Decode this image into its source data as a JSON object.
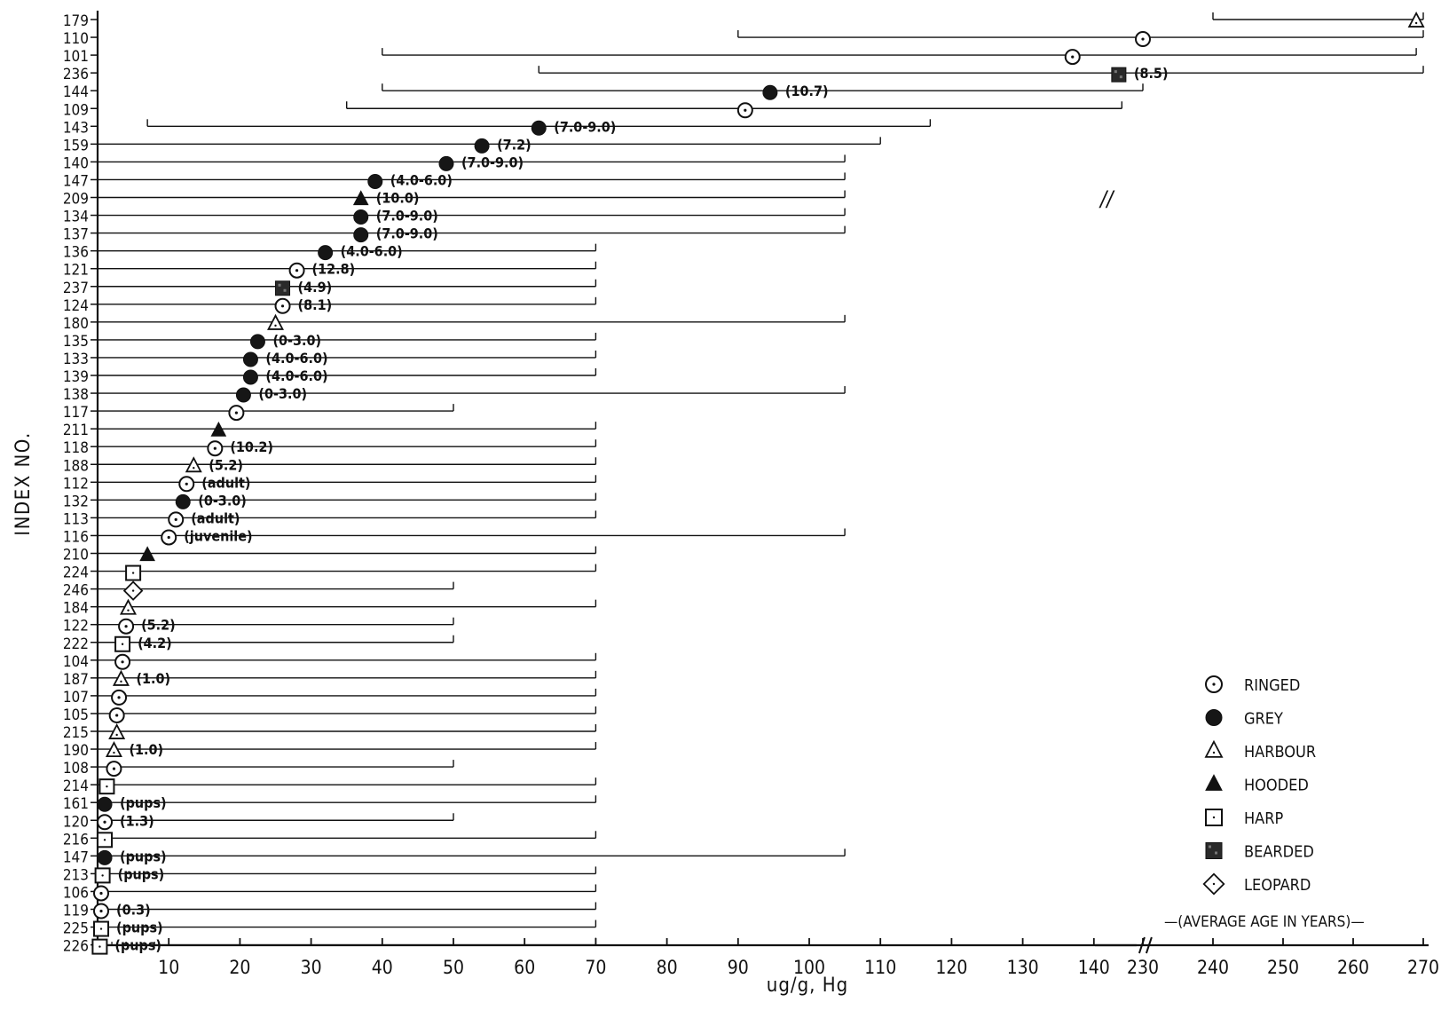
{
  "chart_data": {
    "type": "scatter",
    "title": "",
    "xlabel": "ug/g, Hg",
    "ylabel": "INDEX NO.",
    "x_axis_break": {
      "from": 145,
      "to": 225
    },
    "xticks": [
      10,
      20,
      30,
      40,
      50,
      60,
      70,
      80,
      90,
      100,
      110,
      120,
      130,
      140,
      230,
      240,
      250,
      260,
      270
    ],
    "break_marks": [
      "//",
      "//"
    ],
    "legend": {
      "placement": "bottom-right",
      "items": [
        {
          "symbol": "ringed",
          "label": "RINGED"
        },
        {
          "symbol": "grey",
          "label": "GREY"
        },
        {
          "symbol": "harbour",
          "label": "HARBOUR"
        },
        {
          "symbol": "hooded",
          "label": "HOODED"
        },
        {
          "symbol": "harp",
          "label": "HARP"
        },
        {
          "symbol": "bearded",
          "label": "BEARDED"
        },
        {
          "symbol": "leopard",
          "label": "LEOPARD"
        }
      ],
      "age_note": "—(AVERAGE AGE IN YEARS)—"
    },
    "rows": [
      {
        "index": "179",
        "species": "harbour",
        "value": 269,
        "range": [
          240,
          270
        ],
        "age": ""
      },
      {
        "index": "110",
        "species": "ringed",
        "value": 230,
        "range": [
          90,
          270
        ],
        "age": ""
      },
      {
        "index": "101",
        "species": "ringed",
        "value": 137,
        "range": [
          40,
          269
        ],
        "age": ""
      },
      {
        "index": "236",
        "species": "bearded",
        "value": 143.5,
        "range": [
          62,
          270
        ],
        "age": "(8.5)"
      },
      {
        "index": "144",
        "species": "grey",
        "value": 94.5,
        "range": [
          40,
          230
        ],
        "age": "(10.7)"
      },
      {
        "index": "109",
        "species": "ringed",
        "value": 91,
        "range": [
          35,
          227
        ],
        "age": ""
      },
      {
        "index": "143",
        "species": "grey",
        "value": 62,
        "range": [
          7,
          117
        ],
        "age": "(7.0-9.0)"
      },
      {
        "index": "159",
        "species": "grey",
        "value": 54,
        "range": [
          0,
          110
        ],
        "age": "(7.2)"
      },
      {
        "index": "140",
        "species": "grey",
        "value": 49,
        "range": [
          0,
          105
        ],
        "age": "(7.0-9.0)"
      },
      {
        "index": "147",
        "species": "grey",
        "value": 39,
        "range": [
          0,
          105
        ],
        "age": "(4.0-6.0)"
      },
      {
        "index": "209",
        "species": "hooded",
        "value": 37,
        "range": [
          0,
          105
        ],
        "age": "(10.0)"
      },
      {
        "index": "134",
        "species": "grey",
        "value": 37,
        "range": [
          0,
          105
        ],
        "age": "(7.0-9.0)"
      },
      {
        "index": "137",
        "species": "grey",
        "value": 37,
        "range": [
          0,
          105
        ],
        "age": "(7.0-9.0)"
      },
      {
        "index": "136",
        "species": "grey",
        "value": 32,
        "range": [
          0,
          70
        ],
        "age": "(4.0-6.0)"
      },
      {
        "index": "121",
        "species": "ringed",
        "value": 28,
        "range": [
          0,
          70
        ],
        "age": "(12.8)"
      },
      {
        "index": "237",
        "species": "bearded",
        "value": 26,
        "range": [
          0,
          70
        ],
        "age": "(4.9)"
      },
      {
        "index": "124",
        "species": "ringed",
        "value": 26,
        "range": [
          0,
          70
        ],
        "age": "(8.1)"
      },
      {
        "index": "180",
        "species": "harbour",
        "value": 25,
        "range": [
          0,
          105
        ],
        "age": ""
      },
      {
        "index": "135",
        "species": "grey",
        "value": 22.5,
        "range": [
          0,
          70
        ],
        "age": "(0-3.0)"
      },
      {
        "index": "133",
        "species": "grey",
        "value": 21.5,
        "range": [
          0,
          70
        ],
        "age": "(4.0-6.0)"
      },
      {
        "index": "139",
        "species": "grey",
        "value": 21.5,
        "range": [
          0,
          70
        ],
        "age": "(4.0-6.0)"
      },
      {
        "index": "138",
        "species": "grey",
        "value": 20.5,
        "range": [
          0,
          105
        ],
        "age": "(0-3.0)"
      },
      {
        "index": "117",
        "species": "ringed",
        "value": 19.5,
        "range": [
          0,
          50
        ],
        "age": ""
      },
      {
        "index": "211",
        "species": "hooded",
        "value": 17,
        "range": [
          0,
          70
        ],
        "age": ""
      },
      {
        "index": "118",
        "species": "ringed",
        "value": 16.5,
        "range": [
          0,
          70
        ],
        "age": "(10.2)"
      },
      {
        "index": "188",
        "species": "harbour",
        "value": 13.5,
        "range": [
          0,
          70
        ],
        "age": "(5.2)"
      },
      {
        "index": "112",
        "species": "ringed",
        "value": 12.5,
        "range": [
          0,
          70
        ],
        "age": "(adult)"
      },
      {
        "index": "132",
        "species": "grey",
        "value": 12,
        "range": [
          0,
          70
        ],
        "age": "(0-3.0)"
      },
      {
        "index": "113",
        "species": "ringed",
        "value": 11,
        "range": [
          0,
          70
        ],
        "age": "(adult)"
      },
      {
        "index": "116",
        "species": "ringed",
        "value": 10,
        "range": [
          0,
          105
        ],
        "age": "(juvenile)"
      },
      {
        "index": "210",
        "species": "hooded",
        "value": 7,
        "range": [
          0,
          70
        ],
        "age": ""
      },
      {
        "index": "224",
        "species": "harp",
        "value": 5,
        "range": [
          0,
          70
        ],
        "age": ""
      },
      {
        "index": "246",
        "species": "leopard",
        "value": 5,
        "range": [
          0,
          50
        ],
        "age": ""
      },
      {
        "index": "184",
        "species": "harbour",
        "value": 4.3,
        "range": [
          0,
          70
        ],
        "age": ""
      },
      {
        "index": "122",
        "species": "ringed",
        "value": 4,
        "range": [
          0,
          50
        ],
        "age": "(5.2)"
      },
      {
        "index": "222",
        "species": "harp",
        "value": 3.5,
        "range": [
          0,
          50
        ],
        "age": "(4.2)"
      },
      {
        "index": "104",
        "species": "ringed",
        "value": 3.5,
        "range": [
          0,
          70
        ],
        "age": ""
      },
      {
        "index": "187",
        "species": "harbour",
        "value": 3.3,
        "range": [
          0,
          70
        ],
        "age": "(1.0)"
      },
      {
        "index": "107",
        "species": "ringed",
        "value": 3,
        "range": [
          0,
          70
        ],
        "age": ""
      },
      {
        "index": "105",
        "species": "ringed",
        "value": 2.7,
        "range": [
          0,
          70
        ],
        "age": ""
      },
      {
        "index": "215",
        "species": "harbour",
        "value": 2.7,
        "range": [
          0,
          70
        ],
        "age": ""
      },
      {
        "index": "190",
        "species": "harbour",
        "value": 2.3,
        "range": [
          0,
          70
        ],
        "age": "(1.0)"
      },
      {
        "index": "108",
        "species": "ringed",
        "value": 2.3,
        "range": [
          0,
          50
        ],
        "age": ""
      },
      {
        "index": "214",
        "species": "harp",
        "value": 1.3,
        "range": [
          0,
          70
        ],
        "age": ""
      },
      {
        "index": "161",
        "species": "grey",
        "value": 1,
        "range": [
          0,
          70
        ],
        "age": "(pups)"
      },
      {
        "index": "120",
        "species": "ringed",
        "value": 1,
        "range": [
          0,
          50
        ],
        "age": "(1.3)"
      },
      {
        "index": "216",
        "species": "harp",
        "value": 1,
        "range": [
          0,
          70
        ],
        "age": ""
      },
      {
        "index": "147",
        "species": "grey",
        "value": 1,
        "range": [
          0,
          105
        ],
        "age": "(pups)"
      },
      {
        "index": "213",
        "species": "harp",
        "value": 0.7,
        "range": [
          0,
          70
        ],
        "age": "(pups)"
      },
      {
        "index": "106",
        "species": "ringed",
        "value": 0.5,
        "range": [
          0,
          70
        ],
        "age": ""
      },
      {
        "index": "119",
        "species": "ringed",
        "value": 0.5,
        "range": [
          0,
          70
        ],
        "age": "(0.3)"
      },
      {
        "index": "225",
        "species": "harp",
        "value": 0.5,
        "range": [
          0,
          70
        ],
        "age": "(pups)"
      },
      {
        "index": "226",
        "species": "harp",
        "value": 0.3,
        "range": [
          0,
          70
        ],
        "age": "(pups)"
      }
    ]
  }
}
